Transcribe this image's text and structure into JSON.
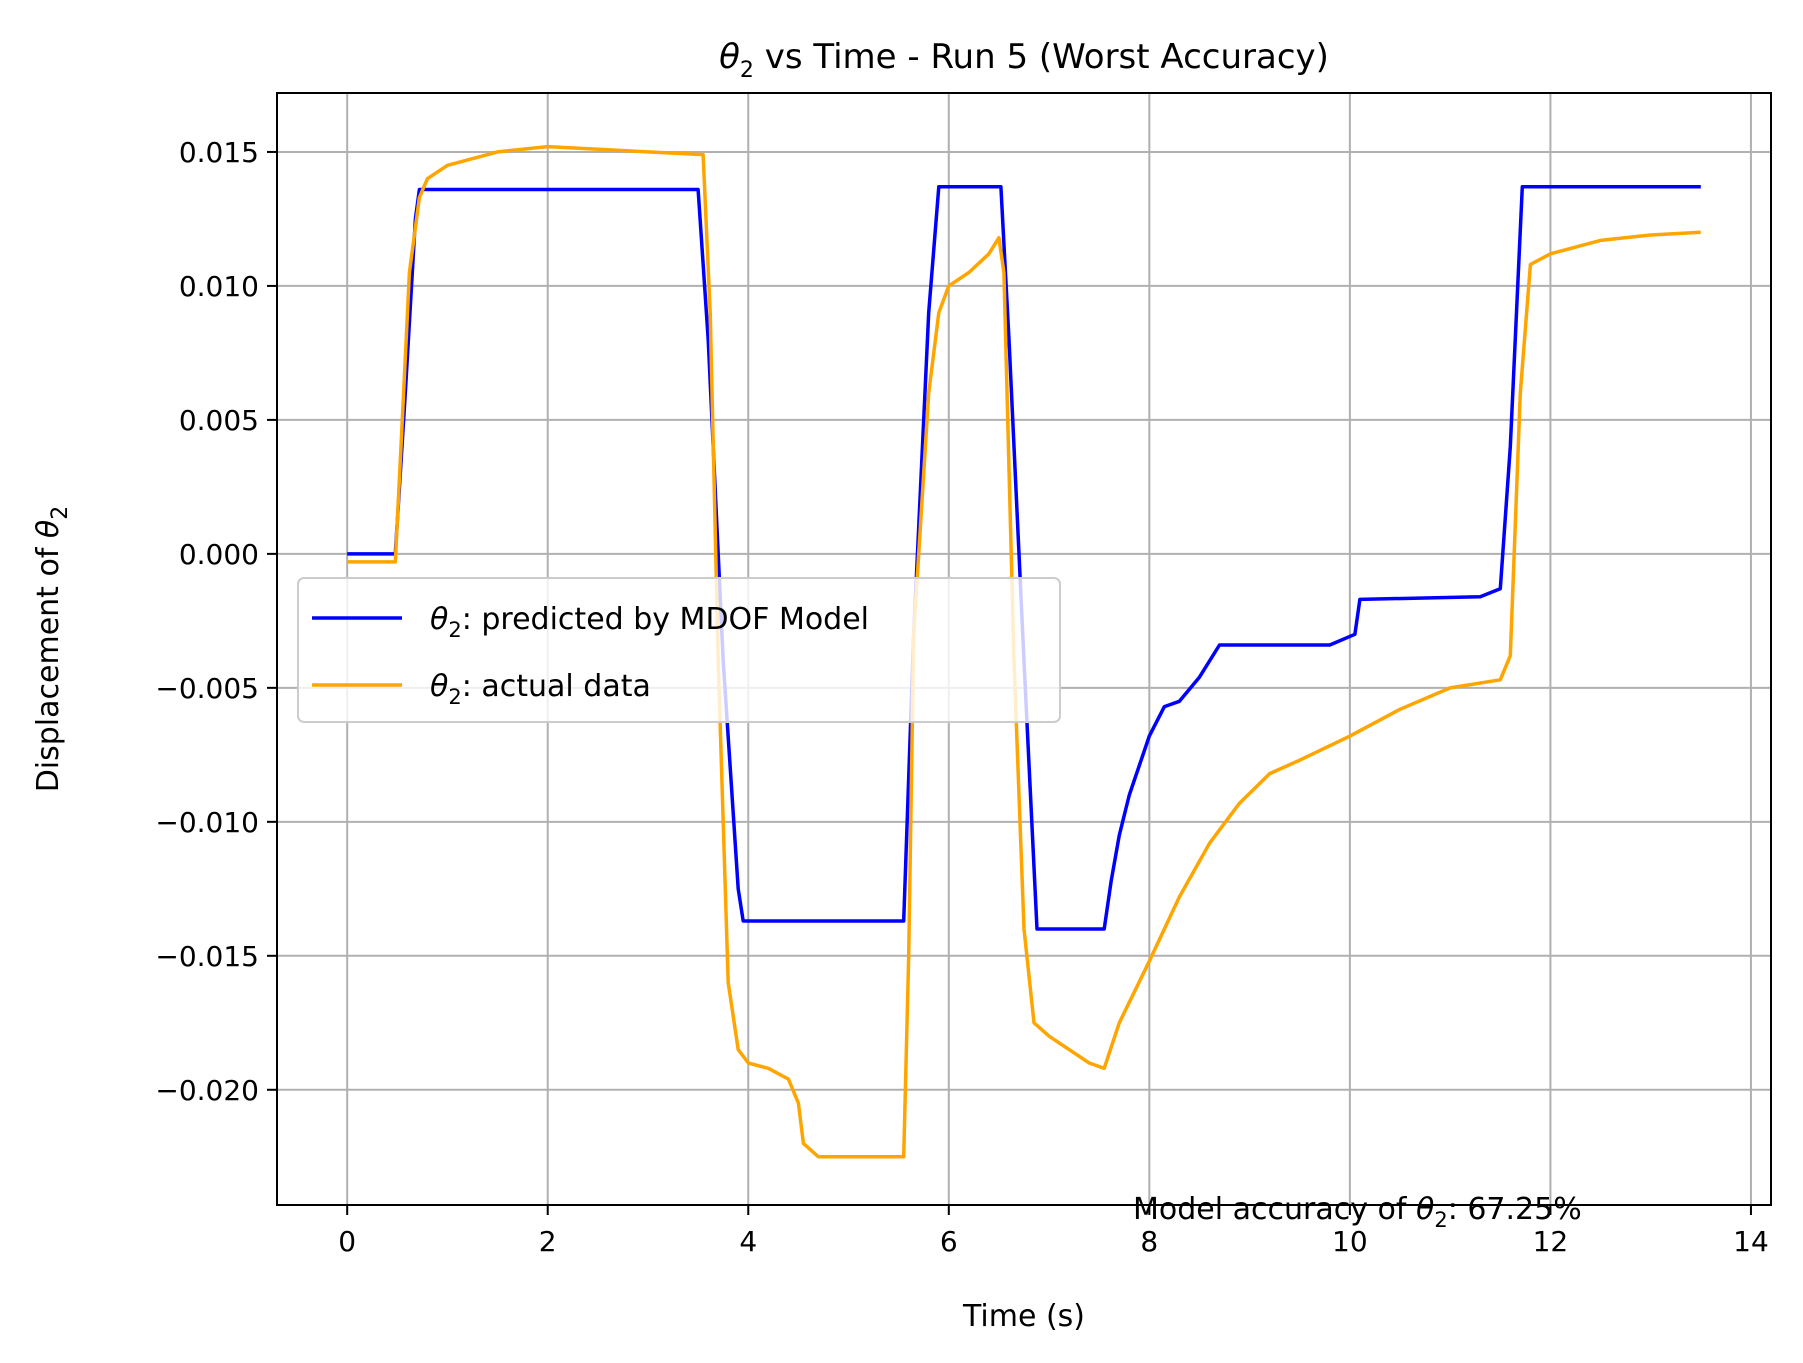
{
  "chart_data": {
    "type": "line",
    "title": "θ2 vs Time - Run 5 (Worst Accuracy)",
    "xlabel": "Time (s)",
    "ylabel": "Displacement of θ2",
    "xlim": [
      -0.7,
      14.2
    ],
    "ylim": [
      -0.0243,
      0.0172
    ],
    "xticks": [
      0,
      2,
      4,
      6,
      8,
      10,
      12,
      14
    ],
    "xtick_labels": [
      "0",
      "2",
      "4",
      "6",
      "8",
      "10",
      "12",
      "14"
    ],
    "yticks": [
      0.015,
      0.01,
      0.005,
      0.0,
      -0.005,
      -0.01,
      -0.015,
      -0.02
    ],
    "ytick_labels": [
      "0.015",
      "0.010",
      "0.005",
      "0.000",
      "−0.005",
      "−0.010",
      "−0.015",
      "−0.020"
    ],
    "grid": true,
    "legend_position": "center-left",
    "annotation": "Model accuracy of θ2: 67.25%",
    "series": [
      {
        "name": "θ2: predicted by MDOF Model",
        "color": "#0000ff",
        "x": [
          0,
          0.48,
          0.58,
          0.68,
          0.72,
          3.5,
          3.6,
          3.75,
          3.9,
          3.95,
          5.55,
          5.65,
          5.8,
          5.9,
          6.52,
          6.6,
          6.75,
          6.88,
          7.55,
          7.62,
          7.7,
          7.8,
          8.0,
          8.15,
          8.3,
          8.5,
          8.7,
          9.8,
          10.05,
          10.1,
          11.3,
          11.5,
          11.6,
          11.72,
          11.8,
          13.5
        ],
        "y": [
          0,
          0,
          0.006,
          0.0125,
          0.0136,
          0.0136,
          0.008,
          -0.004,
          -0.0125,
          -0.0137,
          -0.0137,
          -0.003,
          0.009,
          0.0137,
          0.0137,
          0.008,
          -0.004,
          -0.014,
          -0.014,
          -0.0122,
          -0.0105,
          -0.009,
          -0.0068,
          -0.0057,
          -0.0055,
          -0.0046,
          -0.0034,
          -0.0034,
          -0.003,
          -0.0017,
          -0.0016,
          -0.0013,
          0.004,
          0.0137,
          0.0137,
          0.0137
        ]
      },
      {
        "name": "θ2: actual data",
        "color": "#ffa500",
        "x": [
          0,
          0.48,
          0.55,
          0.62,
          0.72,
          0.8,
          1.0,
          1.5,
          2.0,
          2.5,
          3.0,
          3.55,
          3.62,
          3.7,
          3.8,
          3.9,
          4.0,
          4.2,
          4.4,
          4.5,
          4.55,
          4.7,
          5.0,
          5.3,
          5.55,
          5.6,
          5.65,
          5.8,
          5.9,
          6.0,
          6.2,
          6.4,
          6.5,
          6.55,
          6.65,
          6.75,
          6.85,
          7.0,
          7.2,
          7.4,
          7.55,
          7.7,
          8.0,
          8.3,
          8.6,
          8.9,
          9.2,
          9.5,
          10.0,
          10.5,
          11.0,
          11.5,
          11.6,
          11.7,
          11.8,
          12.0,
          12.5,
          13.0,
          13.5
        ],
        "y": [
          -0.0003,
          -0.0003,
          0.005,
          0.0105,
          0.0133,
          0.014,
          0.0145,
          0.015,
          0.0152,
          0.0151,
          0.015,
          0.0149,
          0.009,
          -0.004,
          -0.016,
          -0.0185,
          -0.019,
          -0.0192,
          -0.0196,
          -0.0205,
          -0.022,
          -0.0225,
          -0.0225,
          -0.0225,
          -0.0225,
          -0.015,
          -0.003,
          0.006,
          0.009,
          0.01,
          0.0105,
          0.0112,
          0.0118,
          0.0105,
          -0.004,
          -0.014,
          -0.0175,
          -0.018,
          -0.0185,
          -0.019,
          -0.0192,
          -0.0175,
          -0.0152,
          -0.0128,
          -0.0108,
          -0.0093,
          -0.0082,
          -0.0077,
          -0.0068,
          -0.0058,
          -0.005,
          -0.0047,
          -0.0038,
          0.006,
          0.0108,
          0.0112,
          0.0117,
          0.0119,
          0.012
        ]
      }
    ]
  }
}
